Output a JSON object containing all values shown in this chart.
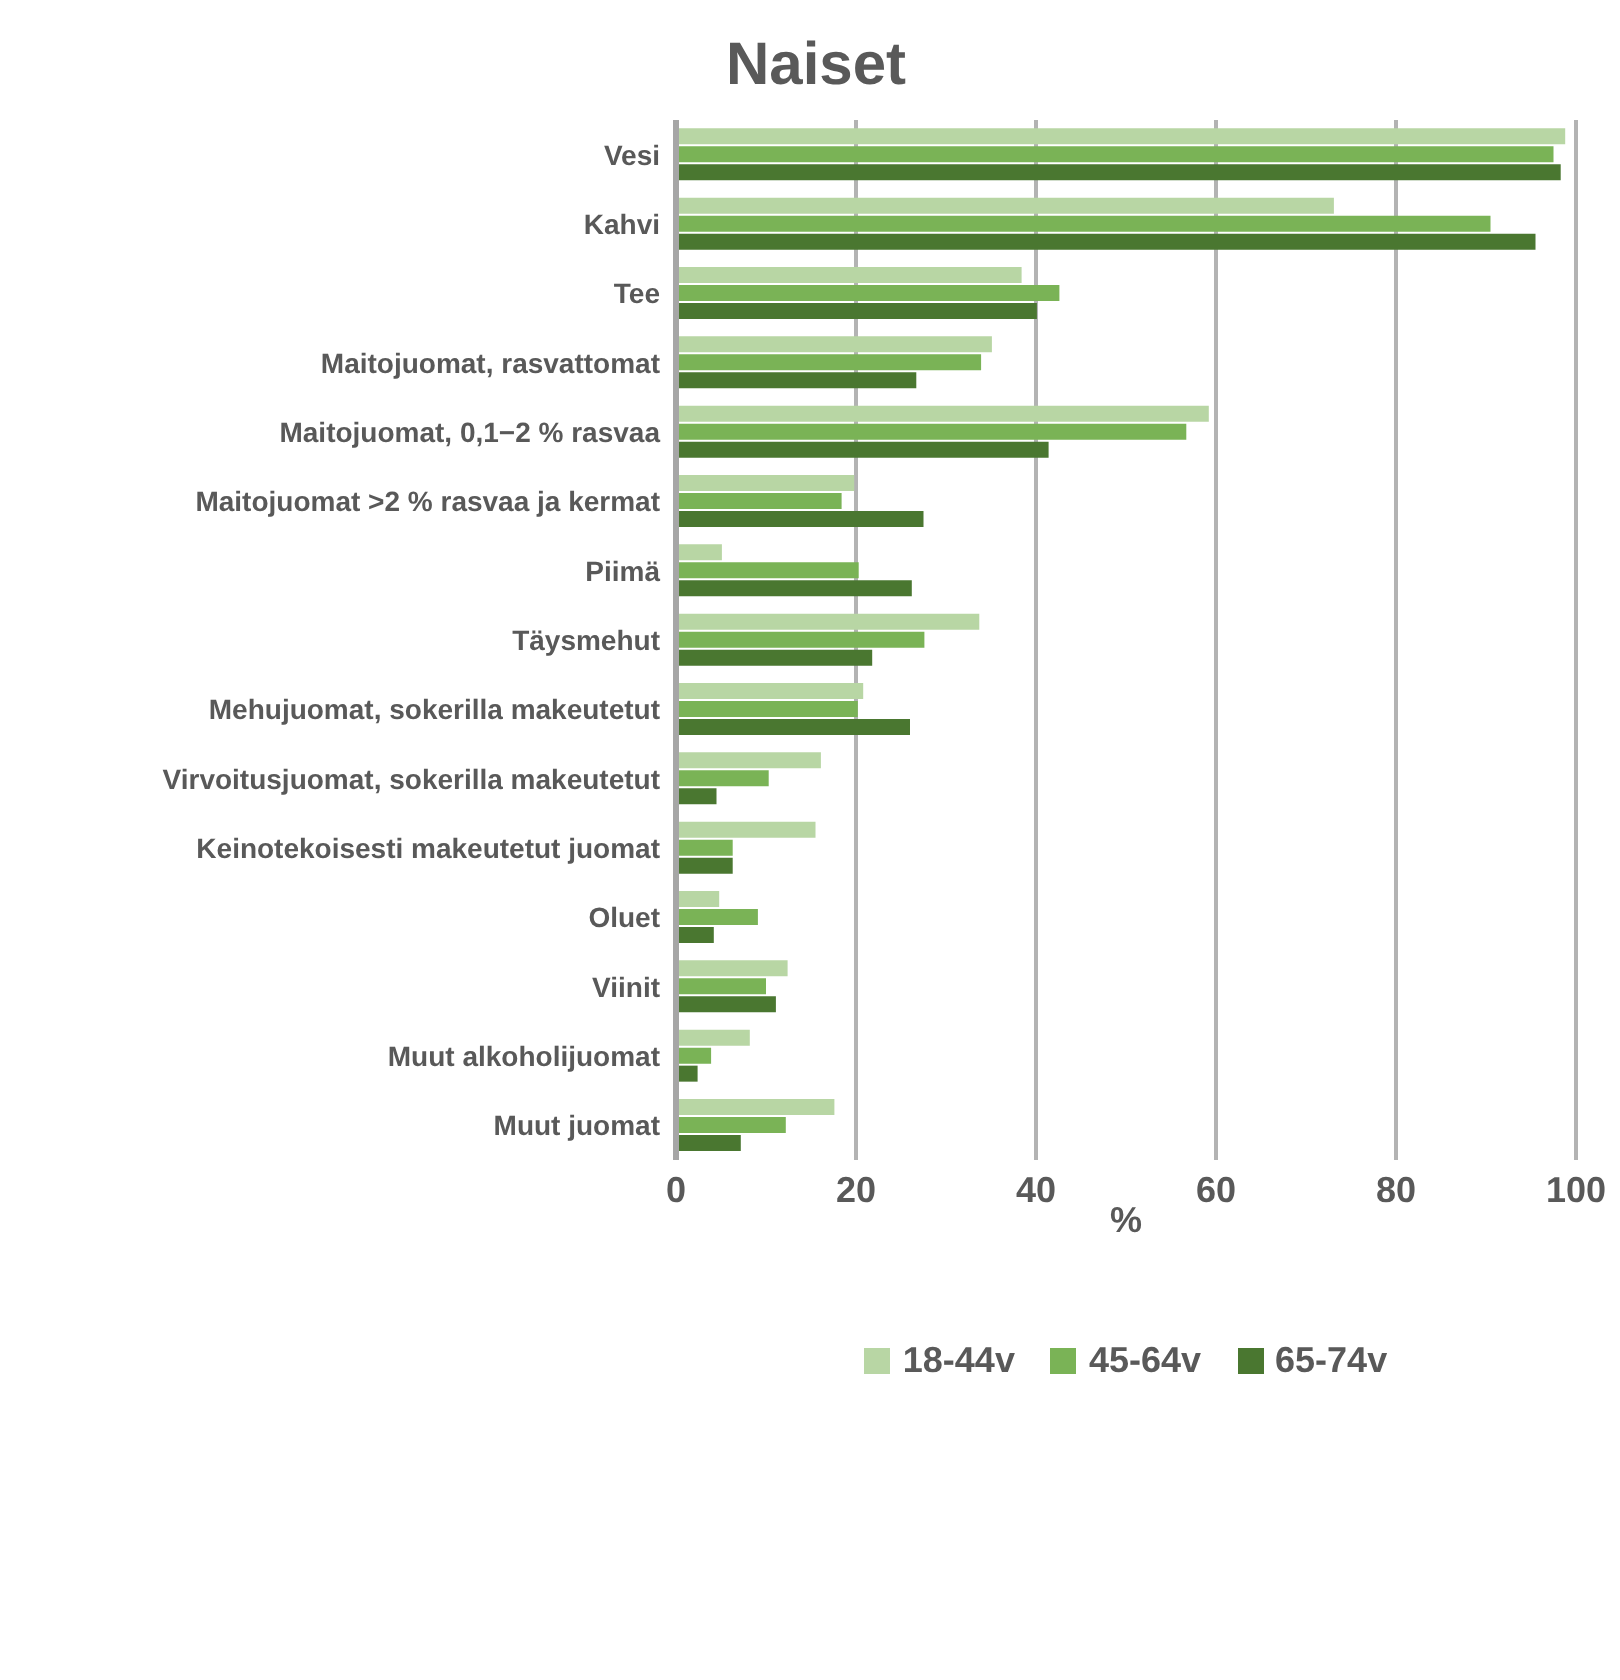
{
  "chart_data": {
    "type": "bar",
    "orientation": "horizontal",
    "title": "Naiset",
    "xlabel": "%",
    "categories": [
      "Vesi",
      "Kahvi",
      "Tee",
      "Maitojuomat, rasvattomat",
      "Maitojuomat, 0,1−2 % rasvaa",
      "Maitojuomat >2 % rasvaa ja kermat",
      "Piimä",
      "Täysmehut",
      "Mehujuomat, sokerilla makeutetut",
      "Virvoitusjuomat, sokerilla makeutetut",
      "Keinotekoisesti makeutetut juomat",
      "Oluet",
      "Viinit",
      "Muut alkoholijuomat",
      "Muut juomat"
    ],
    "series": [
      {
        "name": "18-44v",
        "color": "#b8d6a4",
        "values": [
          98.8,
          73.1,
          38.4,
          35.1,
          59.2,
          19.8,
          5.1,
          33.7,
          20.8,
          16.1,
          15.5,
          4.8,
          12.4,
          8.2,
          17.6
        ]
      },
      {
        "name": "45-64v",
        "color": "#7ab356",
        "values": [
          97.5,
          90.5,
          42.6,
          33.9,
          56.7,
          18.4,
          20.3,
          27.6,
          20.2,
          10.3,
          6.3,
          9.1,
          10.0,
          3.9,
          12.2
        ]
      },
      {
        "name": "65-74v",
        "color": "#4a7730",
        "values": [
          98.3,
          95.5,
          40.1,
          26.7,
          41.4,
          27.5,
          26.2,
          21.8,
          26.0,
          4.5,
          6.3,
          4.2,
          11.1,
          2.4,
          7.2
        ]
      }
    ],
    "xlim": [
      0,
      100
    ],
    "xticks": [
      0,
      20,
      40,
      60,
      80,
      100
    ],
    "grid": "x",
    "legend": "bottom"
  }
}
